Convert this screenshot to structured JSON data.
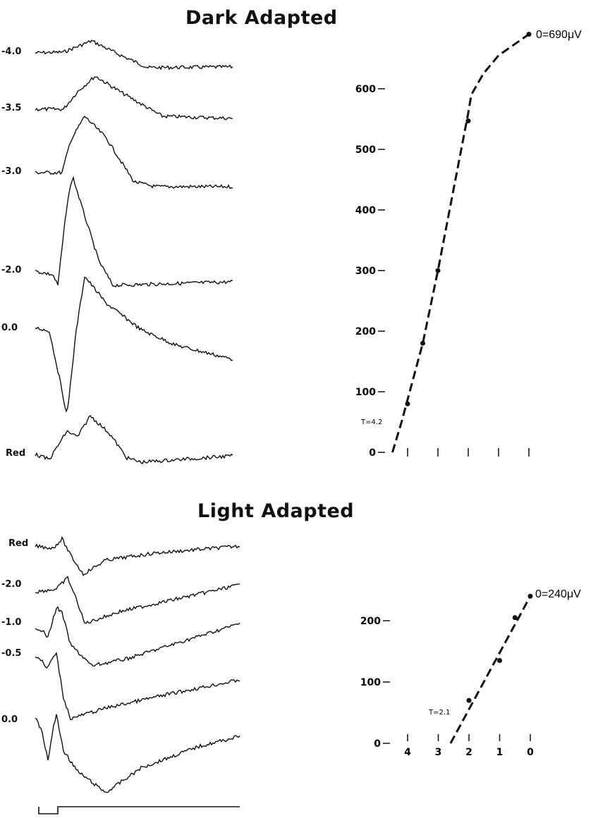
{
  "panels": {
    "dark": {
      "title": "Dark Adapted",
      "trace_labels": [
        "-4.0",
        "-3.5",
        "-3.0",
        "-2.0",
        "0.0",
        "Red"
      ]
    },
    "light": {
      "title": "Light Adapted",
      "trace_labels": [
        "Red",
        "-2.0",
        "-1.0",
        "-0.5",
        "0.0"
      ]
    }
  },
  "chart_data": [
    {
      "type": "line",
      "title": "",
      "xlabel": "",
      "ylabel": "",
      "x_reversed": true,
      "xlim": [
        4.6,
        0
      ],
      "ylim": [
        0,
        690
      ],
      "x_ticks": [
        4,
        3,
        2,
        1,
        0
      ],
      "x_tick_labels": [
        "",
        "",
        "",
        "",
        ""
      ],
      "y_ticks": [
        0,
        100,
        200,
        300,
        400,
        500,
        600
      ],
      "y_tick_labels": [
        "0",
        "100",
        "200",
        "300",
        "400",
        "500",
        "600"
      ],
      "points": {
        "x": [
          4,
          3.5,
          3,
          2,
          0
        ],
        "y": [
          80,
          180,
          300,
          547,
          690
        ]
      },
      "fit_line": {
        "style": "dashed",
        "x": [
          4.5,
          4.2,
          3.5,
          3,
          2.5,
          2,
          1.9,
          1.5,
          1,
          0
        ],
        "y": [
          0,
          50,
          180,
          300,
          430,
          560,
          590,
          625,
          655,
          690
        ]
      },
      "annotations": [
        "0=690μV",
        "T=4.2"
      ],
      "grid": false
    },
    {
      "type": "line",
      "title": "",
      "xlabel": "",
      "ylabel": "",
      "x_reversed": true,
      "xlim": [
        4.6,
        0
      ],
      "ylim": [
        0,
        240
      ],
      "x_ticks": [
        4,
        3,
        2,
        1,
        0
      ],
      "x_tick_labels": [
        "4",
        "3",
        "2",
        "1",
        "0"
      ],
      "y_ticks": [
        0,
        100,
        200
      ],
      "y_tick_labels": [
        "0",
        "100",
        "200"
      ],
      "points": {
        "x": [
          2,
          1,
          0.5,
          0
        ],
        "y": [
          70,
          135,
          205,
          240
        ]
      },
      "fit_line": {
        "style": "dashed",
        "x": [
          2.6,
          0
        ],
        "y": [
          0,
          240
        ]
      },
      "annotations": [
        "0=240μV",
        "T=2.1"
      ],
      "grid": false
    }
  ]
}
